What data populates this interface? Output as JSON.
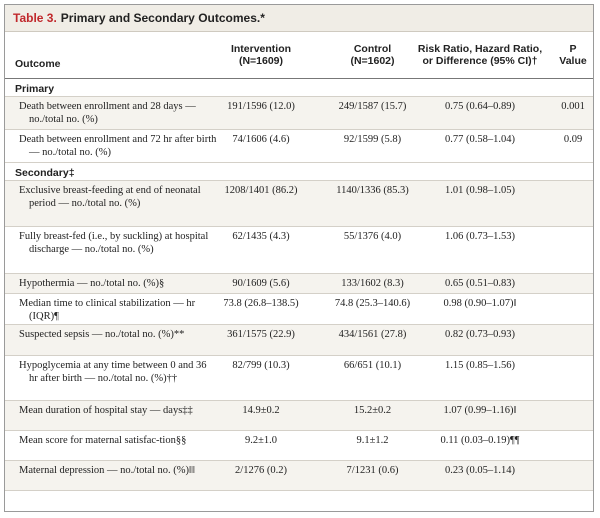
{
  "table": {
    "number": "Table 3.",
    "title": "Primary and Secondary Outcomes.*",
    "headers": {
      "outcome": "Outcome",
      "intervention": "Intervention\n(N=1609)",
      "control": "Control\n(N=1602)",
      "risk": "Risk Ratio, Hazard Ratio,\nor Difference (95% CI)†",
      "p": "P\nValue"
    },
    "rows": [
      {
        "type": "section",
        "label": "Primary"
      },
      {
        "type": "data",
        "label": "Death between enrollment and 28 days — no./total no. (%)",
        "intervention": "191/1596 (12.0)",
        "control": "249/1587 (15.7)",
        "risk": "0.75 (0.64–0.89)",
        "p": "0.001"
      },
      {
        "type": "data",
        "label": "Death between enrollment and 72 hr after birth — no./total no. (%)",
        "intervention": "74/1606 (4.6)",
        "control": "92/1599 (5.8)",
        "risk": "0.77 (0.58–1.04)",
        "p": "0.09"
      },
      {
        "type": "section",
        "label": "Secondary‡"
      },
      {
        "type": "data",
        "label": "Exclusive breast-feeding at end of neonatal period — no./total no. (%)",
        "intervention": "1208/1401 (86.2)",
        "control": "1140/1336 (85.3)",
        "risk": "1.01 (0.98–1.05)",
        "p": ""
      },
      {
        "type": "data",
        "label": "Fully breast-fed (i.e., by suckling) at hospital discharge — no./total no. (%)",
        "intervention": "62/1435 (4.3)",
        "control": "55/1376 (4.0)",
        "risk": "1.06 (0.73–1.53)",
        "p": ""
      },
      {
        "type": "data",
        "label": "Hypothermia — no./total no. (%)§",
        "intervention": "90/1609 (5.6)",
        "control": "133/1602 (8.3)",
        "risk": "0.65 (0.51–0.83)",
        "p": ""
      },
      {
        "type": "data",
        "label": "Median time to clinical stabilization — hr (IQR)¶",
        "intervention": "73.8 (26.8–138.5)",
        "control": "74.8 (25.3–140.6)",
        "risk": "0.98 (0.90–1.07)‖",
        "p": ""
      },
      {
        "type": "data",
        "label": "Suspected sepsis — no./total no. (%)**",
        "intervention": "361/1575 (22.9)",
        "control": "434/1561 (27.8)",
        "risk": "0.82 (0.73–0.93)",
        "p": ""
      },
      {
        "type": "data",
        "label": "Hypoglycemia at any time between 0 and 36 hr after birth — no./total no. (%)††",
        "intervention": "82/799 (10.3)",
        "control": "66/651 (10.1)",
        "risk": "1.15 (0.85–1.56)",
        "p": ""
      },
      {
        "type": "data",
        "label": "Mean duration of hospital stay — days‡‡",
        "intervention": "14.9±0.2",
        "control": "15.2±0.2",
        "risk": "1.07 (0.99–1.16)‖",
        "p": ""
      },
      {
        "type": "data",
        "label": "Mean score for maternal satisfac-tion§§",
        "intervention": "9.2±1.0",
        "control": "9.1±1.2",
        "risk": "0.11 (0.03–0.19)¶¶",
        "p": ""
      },
      {
        "type": "data",
        "label": "Maternal depression — no./total no. (%)‖‖",
        "intervention": "2/1276 (0.2)",
        "control": "7/1231 (0.6)",
        "risk": "0.23 (0.05–1.14)",
        "p": ""
      }
    ]
  }
}
